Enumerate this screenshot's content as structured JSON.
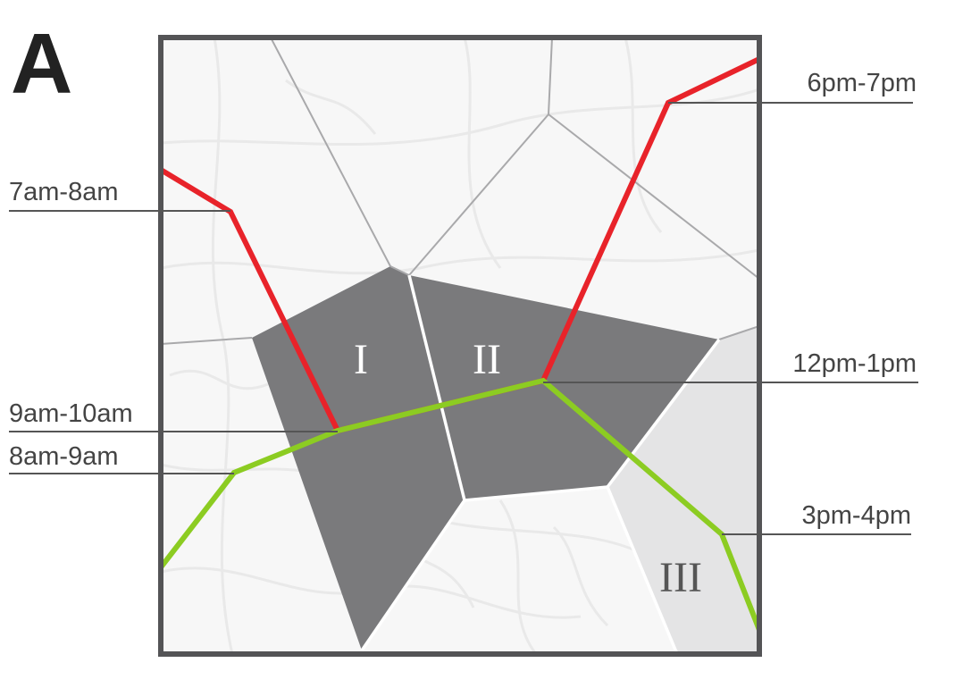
{
  "figure": {
    "panel_letter": "A"
  },
  "regions": [
    {
      "id": "I",
      "label": "I",
      "shade": "dark",
      "fill": "#7a7a7c"
    },
    {
      "id": "II",
      "label": "II",
      "shade": "dark",
      "fill": "#7a7a7c"
    },
    {
      "id": "III",
      "label": "III",
      "shade": "light",
      "fill": "#e4e4e5"
    }
  ],
  "time_labels": {
    "t1": "7am-8am",
    "t2": "9am-10am",
    "t3": "8am-9am",
    "t4": "6pm-7pm",
    "t5": "12pm-1pm",
    "t6": "3pm-4pm"
  },
  "trajectories": [
    {
      "name": "red-trajectory",
      "color": "#e8232a"
    },
    {
      "name": "green-trajectory",
      "color": "#8ccc22"
    }
  ],
  "colors": {
    "frame": "#545456",
    "cell_edge": "#a9a9ab",
    "leader_line": "#555555",
    "region_label_on_dark": "#ffffff",
    "region_label_on_light": "#555555",
    "map_background": "#f7f7f7"
  }
}
